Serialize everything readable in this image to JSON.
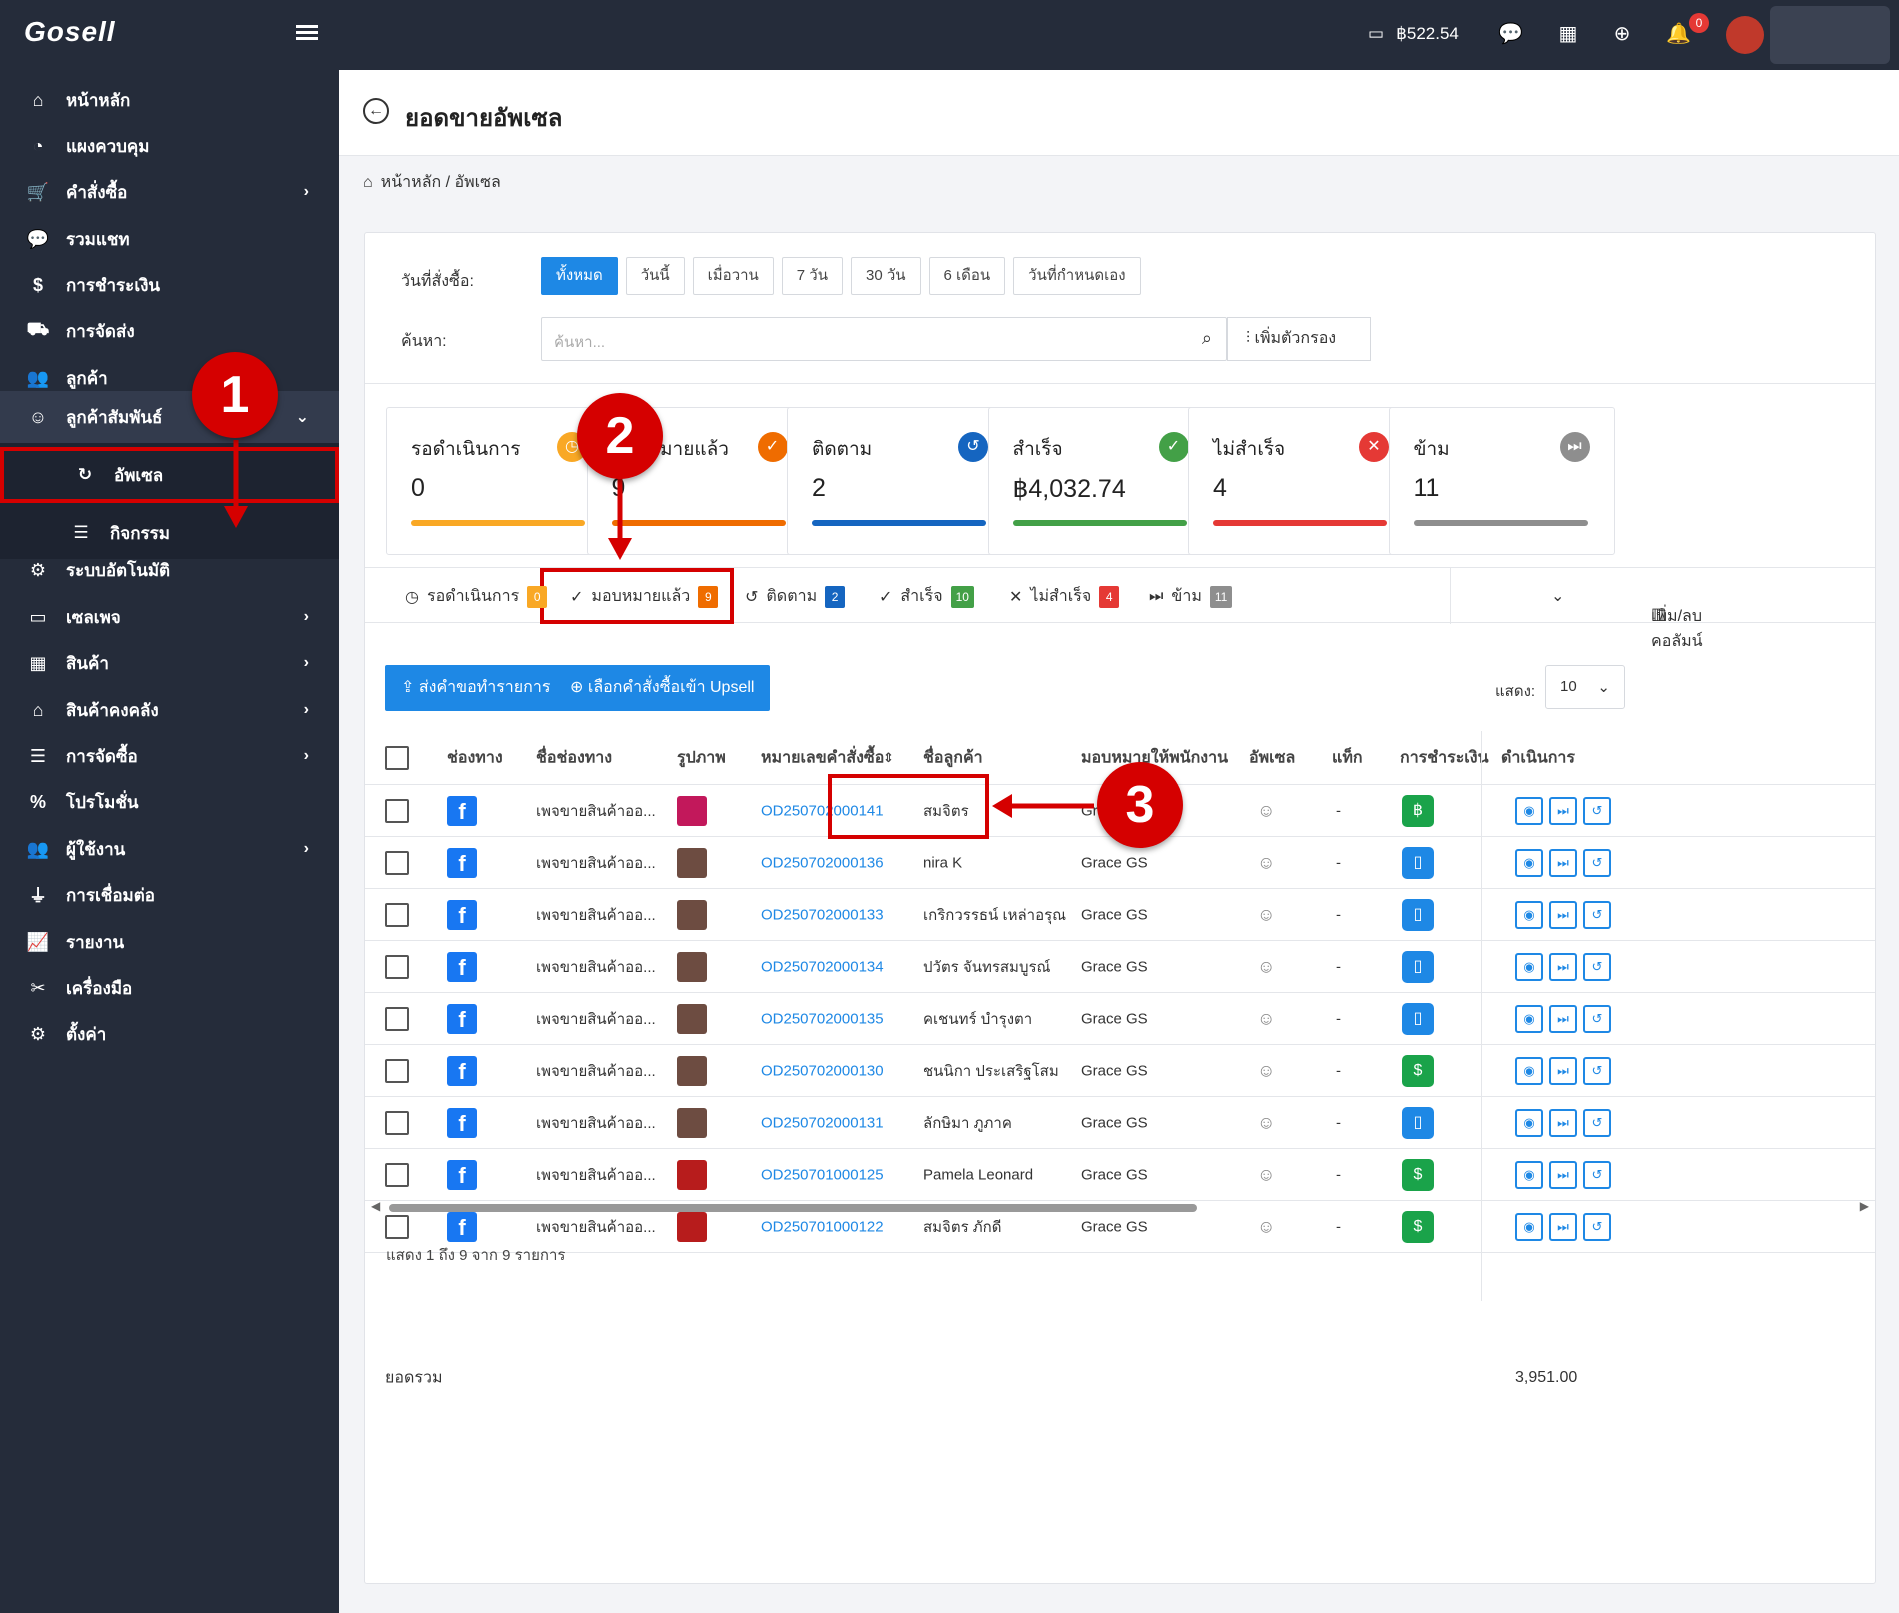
{
  "topbar": {
    "logo": "Gosell",
    "balance": "฿522.54",
    "notification_count": "0"
  },
  "sidebar": {
    "items": [
      {
        "label": "หน้าหลัก",
        "icon": "home-icon"
      },
      {
        "label": "แผงควบคุม",
        "icon": "dashboard-icon"
      },
      {
        "label": "คำสั่งซื้อ",
        "icon": "cart-icon"
      },
      {
        "label": "รวมแชท",
        "icon": "chat-icon"
      },
      {
        "label": "การชำระเงิน",
        "icon": "money-bag-icon"
      },
      {
        "label": "การจัดส่ง",
        "icon": "truck-icon"
      },
      {
        "label": "ลูกค้า",
        "icon": "users-icon"
      },
      {
        "label": "ลูกค้าสัมพันธ์",
        "icon": "crm-icon"
      },
      {
        "label": "ระบบอัตโนมัติ",
        "icon": "robot-icon"
      },
      {
        "label": "เซลเพจ",
        "icon": "window-icon"
      },
      {
        "label": "สินค้า",
        "icon": "boxes-icon"
      },
      {
        "label": "สินค้าคงคลัง",
        "icon": "warehouse-icon"
      },
      {
        "label": "การจัดซื้อ",
        "icon": "purchase-icon"
      },
      {
        "label": "โปรโมชั่น",
        "icon": "percent-icon"
      },
      {
        "label": "ผู้ใช้งาน",
        "icon": "user-group-icon"
      },
      {
        "label": "การเชื่อมต่อ",
        "icon": "plug-icon"
      },
      {
        "label": "รายงาน",
        "icon": "chart-icon"
      },
      {
        "label": "เครื่องมือ",
        "icon": "tools-icon"
      },
      {
        "label": "ตั้งค่า",
        "icon": "gear-icon"
      }
    ],
    "submenu": [
      {
        "label": "อัพเซล",
        "icon": "upsell-icon"
      },
      {
        "label": "กิจกรรม",
        "icon": "list-icon"
      }
    ]
  },
  "page": {
    "title": "ยอดขายอัพเซล",
    "breadcrumb": "หน้าหลัก / อัพเซล"
  },
  "filters": {
    "date_label": "วันที่สั่งซื้อ:",
    "date_options": [
      "ทั้งหมด",
      "วันนี้",
      "เมื่อวาน",
      "7 วัน",
      "30 วัน",
      "6 เดือน",
      "วันที่กำหนดเอง"
    ],
    "date_selected": "ทั้งหมด",
    "search_label": "ค้นหา:",
    "search_placeholder": "ค้นหา...",
    "add_filter": "เพิ่มตัวกรอง"
  },
  "stats": [
    {
      "title": "รอดำเนินการ",
      "value": "0",
      "color": "#f9a825"
    },
    {
      "title": "มอบหมายแล้ว",
      "value": "9",
      "color": "#ef6c00"
    },
    {
      "title": "ติดตาม",
      "value": "2",
      "color": "#1565c0"
    },
    {
      "title": "สำเร็จ",
      "value": "฿4,032.74",
      "color": "#43a047"
    },
    {
      "title": "ไม่สำเร็จ",
      "value": "4",
      "color": "#e53935"
    },
    {
      "title": "ข้าม",
      "value": "11",
      "color": "#8e8e8e"
    }
  ],
  "tabs": [
    {
      "label": "รอดำเนินการ",
      "count": "0",
      "color": "#f9a825"
    },
    {
      "label": "มอบหมายแล้ว",
      "count": "9",
      "color": "#ef6c00"
    },
    {
      "label": "ติดตาม",
      "count": "2",
      "color": "#1565c0"
    },
    {
      "label": "สำเร็จ",
      "count": "10",
      "color": "#43a047"
    },
    {
      "label": "ไม่สำเร็จ",
      "count": "4",
      "color": "#e53935"
    },
    {
      "label": "ข้าม",
      "count": "11",
      "color": "#8e8e8e"
    }
  ],
  "columns_button": "เพิ่ม/ลบ คอลัมน์",
  "actions": {
    "send_order": "ส่งคำขอทำรายการ",
    "select_orders": "เลือกคำสั่งซื้อเข้า Upsell",
    "show_label": "แสดง:",
    "show_value": "10"
  },
  "table": {
    "headers": [
      "ช่องทาง",
      "ชื่อช่องทาง",
      "รูปภาพ",
      "หมายเลขคำสั่งซื้อ",
      "ชื่อลูกค้า",
      "มอบหมายให้พนักงาน",
      "อัพเซล",
      "แท็ก",
      "การชำระเงิน",
      "ดำเนินการ"
    ],
    "rows": [
      {
        "channel_name": "เพจขายสินค้าออ...",
        "order": "OD250702000141",
        "customer": "สมจิตร",
        "staff": "Grace GS",
        "tag": "-",
        "payment": "bank"
      },
      {
        "channel_name": "เพจขายสินค้าออ...",
        "order": "OD250702000136",
        "customer": "nira K",
        "staff": "Grace GS",
        "tag": "-",
        "payment": "mobile"
      },
      {
        "channel_name": "เพจขายสินค้าออ...",
        "order": "OD250702000133",
        "customer": "เกริกวรรธน์ เหล่าอรุณ",
        "staff": "Grace GS",
        "tag": "-",
        "payment": "mobile"
      },
      {
        "channel_name": "เพจขายสินค้าออ...",
        "order": "OD250702000134",
        "customer": "ปวัตร จันทรสมบูรณ์",
        "staff": "Grace GS",
        "tag": "-",
        "payment": "mobile"
      },
      {
        "channel_name": "เพจขายสินค้าออ...",
        "order": "OD250702000135",
        "customer": "คเชนทร์ บำรุงตา",
        "staff": "Grace GS",
        "tag": "-",
        "payment": "mobile"
      },
      {
        "channel_name": "เพจขายสินค้าออ...",
        "order": "OD250702000130",
        "customer": "ชนนิกา ประเสริฐโสม",
        "staff": "Grace GS",
        "tag": "-",
        "payment": "cod"
      },
      {
        "channel_name": "เพจขายสินค้าออ...",
        "order": "OD250702000131",
        "customer": "ลักษิมา ภูภาค",
        "staff": "Grace GS",
        "tag": "-",
        "payment": "mobile"
      },
      {
        "channel_name": "เพจขายสินค้าออ...",
        "order": "OD250701000125",
        "customer": "Pamela Leonard",
        "staff": "Grace GS",
        "tag": "-",
        "payment": "cod"
      },
      {
        "channel_name": "เพจขายสินค้าออ...",
        "order": "OD250701000122",
        "customer": "สมจิตร ภักดี",
        "staff": "Grace GS",
        "tag": "-",
        "payment": "cod"
      }
    ],
    "total_label": "ยอดรวม",
    "total_value": "3,951.00",
    "summary": "แสดง 1 ถึง 9 จาก 9 รายการ"
  },
  "callouts": [
    "1",
    "2",
    "3"
  ]
}
